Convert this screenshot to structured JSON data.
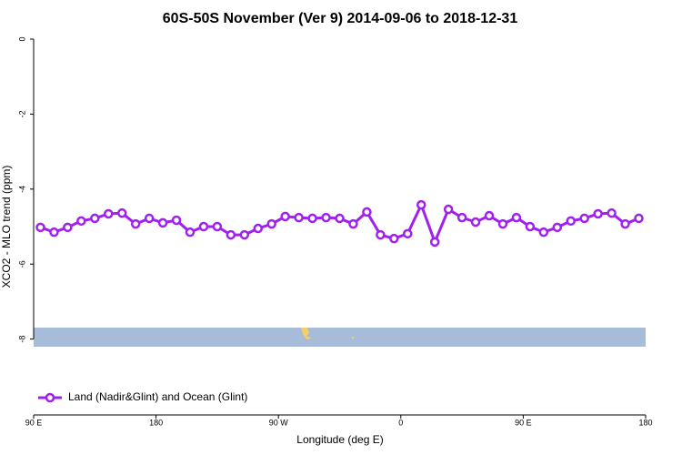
{
  "chart_data": {
    "type": "line",
    "title": "60S-50S November (Ver 9)   2014-09-06 to 2018-12-31",
    "x_label": "Longitude (deg E)",
    "y_label": "XCO2 - MLO trend (ppm)",
    "x": [
      95,
      105,
      115,
      125,
      135,
      145,
      155,
      165,
      175,
      185,
      195,
      205,
      215,
      225,
      235,
      245,
      255,
      265,
      275,
      285,
      295,
      305,
      315,
      325,
      335,
      345,
      355,
      365,
      375,
      385,
      395,
      405,
      415,
      425,
      435,
      445,
      455,
      465,
      475,
      485,
      495,
      505,
      515,
      525,
      535
    ],
    "series": [
      {
        "name": "Land (Nadir&Glint) and Ocean (Glint)",
        "color": "#a020f0",
        "values": [
          -5.02,
          -5.15,
          -5.02,
          -4.85,
          -4.78,
          -4.66,
          -4.64,
          -4.93,
          -4.78,
          -4.9,
          -4.83,
          -5.15,
          -5.0,
          -5.0,
          -5.22,
          -5.22,
          -5.05,
          -4.93,
          -4.73,
          -4.76,
          -4.78,
          -4.76,
          -4.78,
          -4.93,
          -4.61,
          -5.22,
          -5.32,
          -5.19,
          -4.42,
          -5.41,
          -4.54,
          -4.76,
          -4.88,
          -4.71,
          -4.93,
          -4.76,
          -5.0,
          -5.15,
          -5.02,
          -4.85,
          -4.78,
          -4.66,
          -4.64,
          -4.93,
          -4.78
        ]
      }
    ],
    "xlim": [
      90,
      540
    ],
    "xticks": [
      {
        "value": 90,
        "label": "90 E"
      },
      {
        "value": 180,
        "label": "180"
      },
      {
        "value": 270,
        "label": "90 W"
      },
      {
        "value": 360,
        "label": "0"
      },
      {
        "value": 450,
        "label": "90 E"
      },
      {
        "value": 540,
        "label": "180"
      }
    ],
    "ylim": [
      -10,
      0
    ],
    "yticks": [
      0,
      -2,
      -4,
      -6,
      -8
    ],
    "grid": false,
    "legend": "bottomleft"
  }
}
